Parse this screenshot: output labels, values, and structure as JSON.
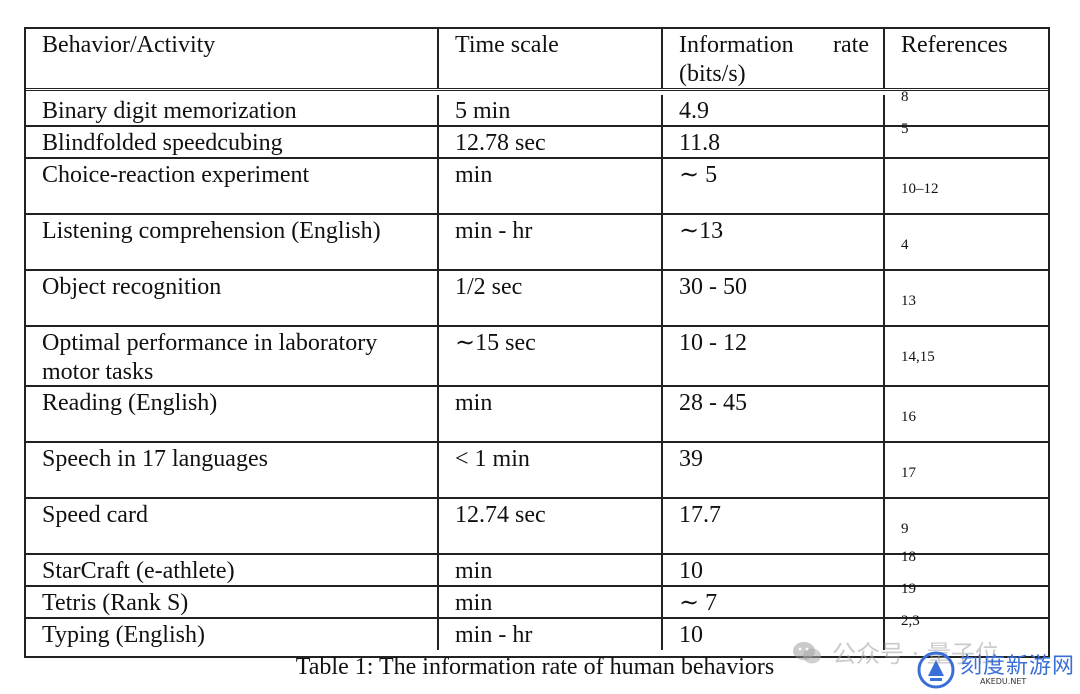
{
  "table": {
    "headers": {
      "behavior": "Behavior/Activity",
      "time_scale": "Time scale",
      "info_rate": "Information rate (bits/s)",
      "references": "References"
    },
    "rows": [
      {
        "behavior": "Binary digit memorization",
        "time_scale": "5 min",
        "info_rate": "4.9",
        "references": "8"
      },
      {
        "behavior": "Blindfolded speedcubing",
        "time_scale": "12.78 sec",
        "info_rate": "11.8",
        "references": "5"
      },
      {
        "behavior": "Choice-reaction experiment",
        "time_scale": "min",
        "info_rate": "∼ 5",
        "references": "10–12"
      },
      {
        "behavior": "Listening comprehension (English)",
        "time_scale": "min - hr",
        "info_rate": "∼13",
        "references": "4"
      },
      {
        "behavior": "Object recognition",
        "time_scale": "1/2 sec",
        "info_rate": "30 - 50",
        "references": "13"
      },
      {
        "behavior": "Optimal performance in laboratory motor tasks",
        "time_scale": "∼15 sec",
        "info_rate": "10 - 12",
        "references": "14,15"
      },
      {
        "behavior": "Reading (English)",
        "time_scale": "min",
        "info_rate": "28 - 45",
        "references": "16"
      },
      {
        "behavior": "Speech in 17 languages",
        "time_scale": "< 1 min",
        "info_rate": "39",
        "references": "17"
      },
      {
        "behavior": "Speed card",
        "time_scale": "12.74 sec",
        "info_rate": "17.7",
        "references": "9"
      },
      {
        "behavior": "StarCraft (e-athlete)",
        "time_scale": "min",
        "info_rate": "10",
        "references": "18"
      },
      {
        "behavior": "Tetris (Rank S)",
        "time_scale": "min",
        "info_rate": "∼ 7",
        "references": "19"
      },
      {
        "behavior": "Typing (English)",
        "time_scale": "min - hr",
        "info_rate": "10",
        "references": "2,3"
      }
    ]
  },
  "caption": "Table 1: The information rate of human behaviors",
  "watermark": {
    "account_text": "公众号 · 量子位",
    "site_name": "刻度新游网",
    "site_url": "AKEDU.NET",
    "logo_color": "#3a6fd8"
  }
}
